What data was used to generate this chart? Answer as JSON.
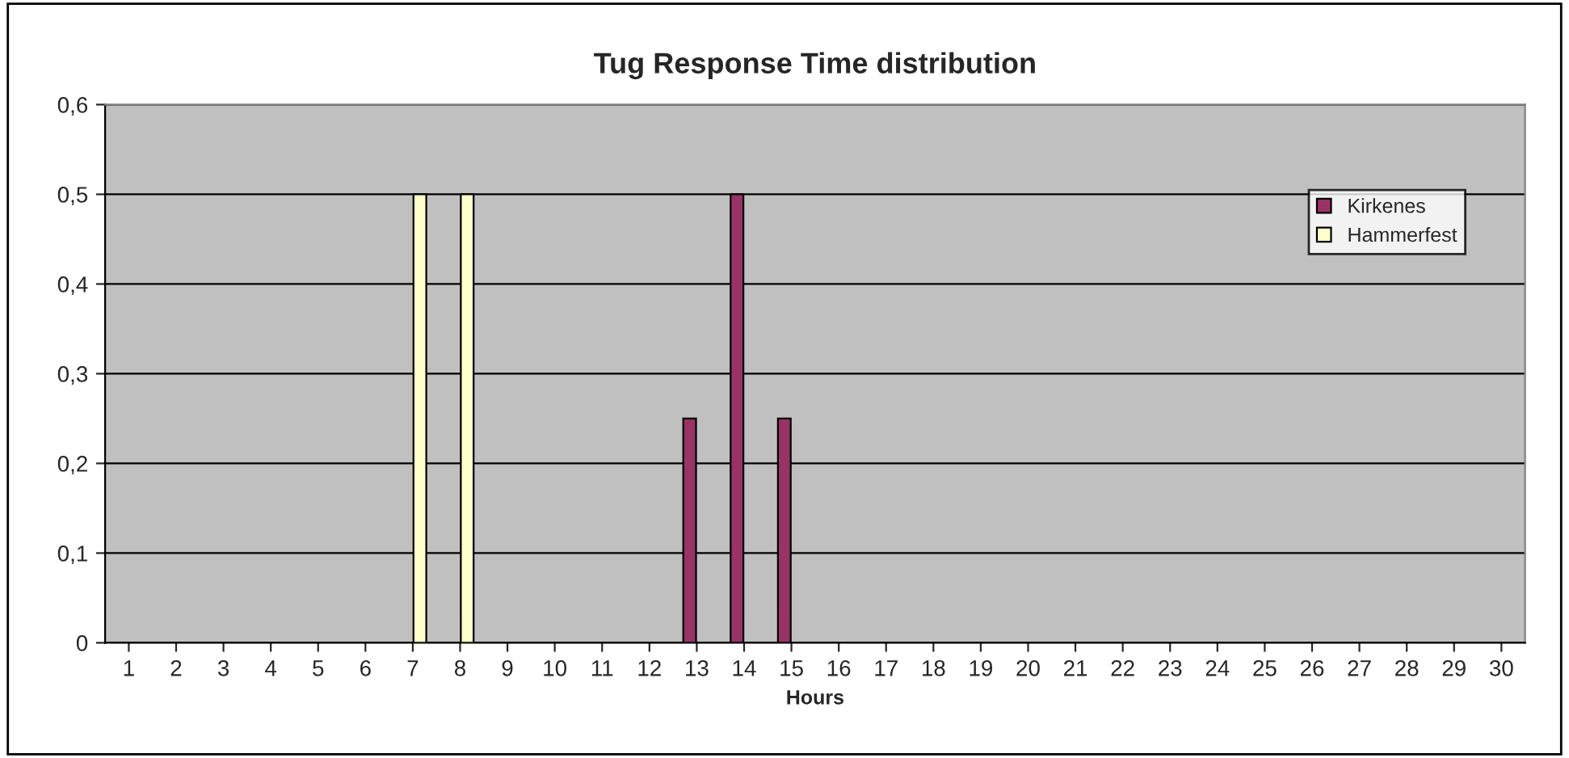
{
  "chart_data": {
    "type": "bar",
    "title": "Tug Response Time distribution",
    "xlabel": "Hours",
    "categories": [
      "1",
      "2",
      "3",
      "4",
      "5",
      "6",
      "7",
      "8",
      "9",
      "10",
      "11",
      "12",
      "13",
      "14",
      "15",
      "16",
      "17",
      "18",
      "19",
      "20",
      "21",
      "22",
      "23",
      "24",
      "25",
      "26",
      "27",
      "28",
      "29",
      "30"
    ],
    "series": [
      {
        "name": "Kirkenes",
        "color": "#993366",
        "values": [
          0,
          0,
          0,
          0,
          0,
          0,
          0,
          0,
          0,
          0,
          0,
          0,
          0.25,
          0.5,
          0.25,
          0,
          0,
          0,
          0,
          0,
          0,
          0,
          0,
          0,
          0,
          0,
          0,
          0,
          0,
          0
        ]
      },
      {
        "name": "Hammerfest",
        "color": "#ffffcc",
        "values": [
          0,
          0,
          0,
          0,
          0,
          0,
          0.5,
          0.5,
          0,
          0,
          0,
          0,
          0,
          0,
          0,
          0,
          0,
          0,
          0,
          0,
          0,
          0,
          0,
          0,
          0,
          0,
          0,
          0,
          0,
          0
        ]
      }
    ],
    "ylim": [
      0,
      0.6
    ],
    "yticks": [
      0,
      {
        "value": 0.1,
        "label": "0,1"
      },
      {
        "value": 0.2,
        "label": "0,2"
      },
      {
        "value": 0.3,
        "label": "0,3"
      },
      {
        "value": 0.4,
        "label": "0,4"
      },
      {
        "value": 0.5,
        "label": "0,5"
      },
      {
        "value": 0.6,
        "label": "0,6"
      }
    ],
    "grid": "y",
    "legend": "top right"
  }
}
